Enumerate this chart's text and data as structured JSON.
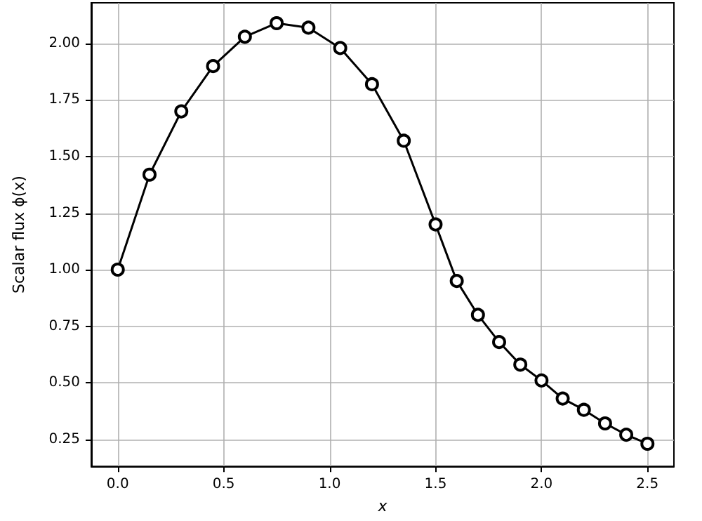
{
  "chart_data": {
    "type": "line",
    "xlabel": "x",
    "ylabel": "Scalar flux ϕ(x)",
    "x": [
      0,
      0.15,
      0.3,
      0.45,
      0.6,
      0.75,
      0.9,
      1.05,
      1.2,
      1.35,
      1.5,
      1.6,
      1.7,
      1.8,
      1.9,
      2.0,
      2.1,
      2.2,
      2.3,
      2.4,
      2.5
    ],
    "series": [
      {
        "color": "#000000",
        "values": [
          1.0,
          1.42,
          1.7,
          1.9,
          2.03,
          2.09,
          2.07,
          1.98,
          1.82,
          1.57,
          1.2,
          0.95,
          0.8,
          0.68,
          0.58,
          0.51,
          0.43,
          0.38,
          0.32,
          0.27,
          0.23
        ]
      }
    ],
    "xlim": [
      -0.125,
      2.625
    ],
    "ylim": [
      0.13,
      2.18
    ],
    "xticks": [
      {
        "value": 0,
        "label": "0.0"
      },
      {
        "value": 0.5,
        "label": "0.5"
      },
      {
        "value": 1,
        "label": "1.0"
      },
      {
        "value": 1.5,
        "label": "1.5"
      },
      {
        "value": 2,
        "label": "2.0"
      },
      {
        "value": 2.5,
        "label": "2.5"
      }
    ],
    "yticks": [
      {
        "value": 0.25,
        "label": "0.25"
      },
      {
        "value": 0.5,
        "label": "0.50"
      },
      {
        "value": 0.75,
        "label": "0.75"
      },
      {
        "value": 1,
        "label": "1.00"
      },
      {
        "value": 1.25,
        "label": "1.25"
      },
      {
        "value": 1.5,
        "label": "1.50"
      },
      {
        "value": 1.75,
        "label": "1.75"
      },
      {
        "value": 2,
        "label": "2.00"
      }
    ],
    "grid": true,
    "marker": "circle",
    "line_style": "solid"
  }
}
